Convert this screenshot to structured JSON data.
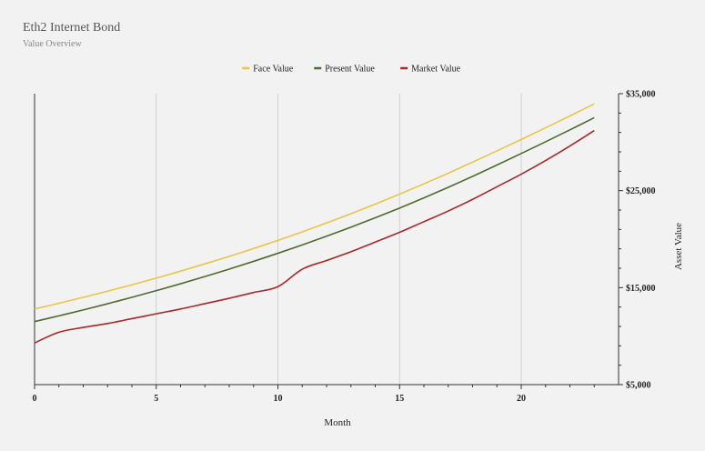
{
  "header": {
    "title": "Eth2 Internet Bond",
    "subtitle": "Value Overview"
  },
  "chart_data": {
    "type": "line",
    "xlabel": "Month",
    "ylabel": "Asset Value",
    "xlim": [
      0,
      24
    ],
    "ylim": [
      5000,
      35000
    ],
    "x_ticks": [
      0,
      5,
      10,
      15,
      20
    ],
    "y_ticks": [
      5000,
      15000,
      25000,
      35000
    ],
    "y_tick_labels": [
      "$5,000",
      "$15,000",
      "$25,000",
      "$35,000"
    ],
    "legend_position": "top-center",
    "grid": "vertical",
    "x": [
      0,
      1,
      2,
      3,
      4,
      5,
      6,
      7,
      8,
      9,
      10,
      11,
      12,
      13,
      14,
      15,
      16,
      17,
      18,
      19,
      20,
      21,
      22,
      23
    ],
    "series": [
      {
        "name": "Face Value",
        "color": "#e8c547",
        "values": [
          12800,
          13390,
          14000,
          14630,
          15290,
          15980,
          16700,
          17450,
          18220,
          19030,
          19870,
          20750,
          21670,
          22620,
          23610,
          24640,
          25700,
          26800,
          27940,
          29100,
          30280,
          31480,
          32700,
          33950
        ]
      },
      {
        "name": "Present Value",
        "color": "#4f6b2f",
        "values": [
          11500,
          12090,
          12700,
          13340,
          14000,
          14690,
          15400,
          16140,
          16910,
          17710,
          18540,
          19400,
          20300,
          21230,
          22200,
          23200,
          24250,
          25340,
          26470,
          27640,
          28830,
          30040,
          31270,
          32520
        ]
      },
      {
        "name": "Market Value",
        "color": "#a8282a",
        "values": [
          9300,
          10400,
          10900,
          11300,
          11800,
          12300,
          12800,
          13350,
          13900,
          14500,
          15100,
          16900,
          17800,
          18700,
          19700,
          20700,
          21800,
          22900,
          24100,
          25400,
          26700,
          28100,
          29600,
          31200
        ]
      }
    ]
  }
}
